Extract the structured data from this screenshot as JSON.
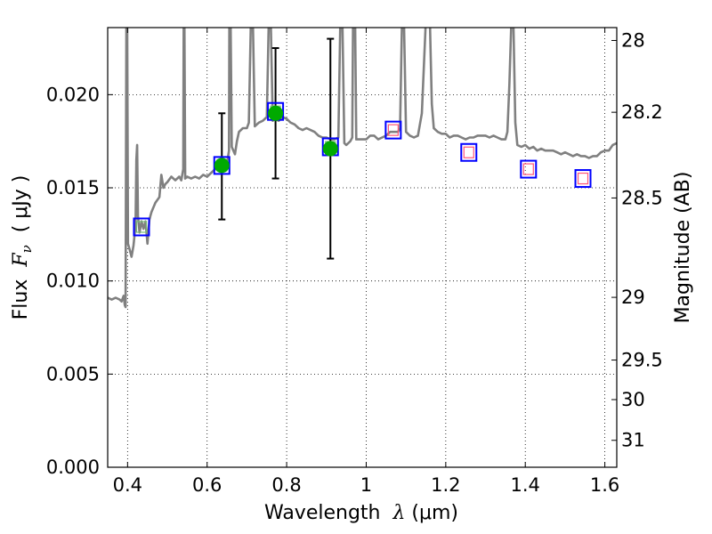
{
  "chart_data": {
    "type": "scatter",
    "xlabel": {
      "prefix": "Wavelength  ",
      "symbol": "λ",
      "unit": " (μm)"
    },
    "ylabel": {
      "prefix": "Flux  ",
      "symbol": "F",
      "sub": "ν",
      "unit": "  ( μJy )"
    },
    "y2label": "Magnitude (AB)",
    "xlim": [
      0.35,
      1.63
    ],
    "ylim": [
      0.0,
      0.0236
    ],
    "x_ticks": [
      0.4,
      0.6,
      0.8,
      1.0,
      1.2,
      1.4,
      1.6
    ],
    "x_tick_labels": [
      "0.4",
      "0.6",
      "0.8",
      "1",
      "1.2",
      "1.4",
      "1.6"
    ],
    "y_ticks": [
      0.0,
      0.005,
      0.01,
      0.015,
      0.02
    ],
    "y_tick_labels": [
      "0.000",
      "0.005",
      "0.010",
      "0.015",
      "0.020"
    ],
    "y2_ticks": [
      {
        "mag": 28.0,
        "label": "28"
      },
      {
        "mag": 28.2,
        "label": "28.2"
      },
      {
        "mag": 28.5,
        "label": "28.5"
      },
      {
        "mag": 29.0,
        "label": "29"
      },
      {
        "mag": 29.5,
        "label": "29.5"
      },
      {
        "mag": 30.0,
        "label": "30"
      },
      {
        "mag": 31.0,
        "label": "31"
      }
    ],
    "grid": true,
    "model_spectrum": {
      "color": "#808080",
      "points": [
        [
          0.35,
          0.0091
        ],
        [
          0.36,
          0.009
        ],
        [
          0.37,
          0.0091
        ],
        [
          0.38,
          0.009
        ],
        [
          0.385,
          0.0089
        ],
        [
          0.39,
          0.0092
        ],
        [
          0.393,
          0.0087
        ],
        [
          0.395,
          0.0086
        ],
        [
          0.397,
          0.024
        ],
        [
          0.399,
          0.024
        ],
        [
          0.401,
          0.012
        ],
        [
          0.405,
          0.0117
        ],
        [
          0.41,
          0.0113
        ],
        [
          0.415,
          0.0119
        ],
        [
          0.42,
          0.013
        ],
        [
          0.422,
          0.0165
        ],
        [
          0.424,
          0.0173
        ],
        [
          0.426,
          0.0135
        ],
        [
          0.43,
          0.0126
        ],
        [
          0.435,
          0.0132
        ],
        [
          0.44,
          0.0128
        ],
        [
          0.445,
          0.0132
        ],
        [
          0.45,
          0.012
        ],
        [
          0.455,
          0.0133
        ],
        [
          0.46,
          0.0137
        ],
        [
          0.47,
          0.0142
        ],
        [
          0.48,
          0.0145
        ],
        [
          0.485,
          0.0157
        ],
        [
          0.49,
          0.015
        ],
        [
          0.495,
          0.0152
        ],
        [
          0.5,
          0.0153
        ],
        [
          0.51,
          0.0156
        ],
        [
          0.52,
          0.0154
        ],
        [
          0.53,
          0.0156
        ],
        [
          0.535,
          0.0154
        ],
        [
          0.54,
          0.016
        ],
        [
          0.541,
          0.024
        ],
        [
          0.543,
          0.024
        ],
        [
          0.545,
          0.0155
        ],
        [
          0.55,
          0.0156
        ],
        [
          0.56,
          0.0155
        ],
        [
          0.57,
          0.0156
        ],
        [
          0.58,
          0.0155
        ],
        [
          0.59,
          0.0157
        ],
        [
          0.6,
          0.0156
        ],
        [
          0.61,
          0.0158
        ],
        [
          0.62,
          0.016
        ],
        [
          0.63,
          0.016
        ],
        [
          0.64,
          0.0162
        ],
        [
          0.65,
          0.0163
        ],
        [
          0.655,
          0.017
        ],
        [
          0.656,
          0.024
        ],
        [
          0.659,
          0.024
        ],
        [
          0.662,
          0.0172
        ],
        [
          0.67,
          0.0168
        ],
        [
          0.675,
          0.0175
        ],
        [
          0.68,
          0.018
        ],
        [
          0.69,
          0.0182
        ],
        [
          0.7,
          0.0182
        ],
        [
          0.705,
          0.0185
        ],
        [
          0.71,
          0.024
        ],
        [
          0.715,
          0.024
        ],
        [
          0.72,
          0.0183
        ],
        [
          0.73,
          0.0185
        ],
        [
          0.74,
          0.0186
        ],
        [
          0.75,
          0.0188
        ],
        [
          0.755,
          0.024
        ],
        [
          0.76,
          0.024
        ],
        [
          0.765,
          0.0186
        ],
        [
          0.77,
          0.0187
        ],
        [
          0.78,
          0.0186
        ],
        [
          0.79,
          0.0188
        ],
        [
          0.8,
          0.0187
        ],
        [
          0.81,
          0.0185
        ],
        [
          0.82,
          0.0184
        ],
        [
          0.83,
          0.0182
        ],
        [
          0.84,
          0.0181
        ],
        [
          0.85,
          0.0182
        ],
        [
          0.86,
          0.0181
        ],
        [
          0.87,
          0.018
        ],
        [
          0.88,
          0.0178
        ],
        [
          0.89,
          0.0177
        ],
        [
          0.9,
          0.0177
        ],
        [
          0.91,
          0.0176
        ],
        [
          0.92,
          0.0176
        ],
        [
          0.93,
          0.0177
        ],
        [
          0.935,
          0.024
        ],
        [
          0.94,
          0.024
        ],
        [
          0.945,
          0.0174
        ],
        [
          0.95,
          0.0173
        ],
        [
          0.96,
          0.0175
        ],
        [
          0.965,
          0.0177
        ],
        [
          0.967,
          0.024
        ],
        [
          0.972,
          0.024
        ],
        [
          0.975,
          0.0176
        ],
        [
          0.98,
          0.0176
        ],
        [
          0.99,
          0.0176
        ],
        [
          1.0,
          0.0176
        ],
        [
          1.01,
          0.0178
        ],
        [
          1.02,
          0.0178
        ],
        [
          1.03,
          0.0176
        ],
        [
          1.04,
          0.0177
        ],
        [
          1.05,
          0.0178
        ],
        [
          1.06,
          0.018
        ],
        [
          1.07,
          0.018
        ],
        [
          1.08,
          0.018
        ],
        [
          1.085,
          0.0182
        ],
        [
          1.09,
          0.024
        ],
        [
          1.095,
          0.024
        ],
        [
          1.1,
          0.018
        ],
        [
          1.11,
          0.0178
        ],
        [
          1.12,
          0.0177
        ],
        [
          1.13,
          0.0178
        ],
        [
          1.14,
          0.019
        ],
        [
          1.15,
          0.024
        ],
        [
          1.155,
          0.024
        ],
        [
          1.16,
          0.024
        ],
        [
          1.165,
          0.0195
        ],
        [
          1.17,
          0.0182
        ],
        [
          1.18,
          0.018
        ],
        [
          1.19,
          0.0179
        ],
        [
          1.2,
          0.0179
        ],
        [
          1.21,
          0.0177
        ],
        [
          1.22,
          0.0178
        ],
        [
          1.23,
          0.0178
        ],
        [
          1.24,
          0.0177
        ],
        [
          1.25,
          0.0176
        ],
        [
          1.26,
          0.0177
        ],
        [
          1.27,
          0.0177
        ],
        [
          1.28,
          0.0178
        ],
        [
          1.29,
          0.0178
        ],
        [
          1.3,
          0.0178
        ],
        [
          1.31,
          0.0177
        ],
        [
          1.32,
          0.0178
        ],
        [
          1.33,
          0.0177
        ],
        [
          1.34,
          0.0176
        ],
        [
          1.35,
          0.0176
        ],
        [
          1.355,
          0.018
        ],
        [
          1.36,
          0.0205
        ],
        [
          1.365,
          0.024
        ],
        [
          1.37,
          0.024
        ],
        [
          1.375,
          0.0185
        ],
        [
          1.38,
          0.0173
        ],
        [
          1.39,
          0.0172
        ],
        [
          1.4,
          0.0173
        ],
        [
          1.41,
          0.0171
        ],
        [
          1.42,
          0.0172
        ],
        [
          1.43,
          0.017
        ],
        [
          1.44,
          0.0171
        ],
        [
          1.45,
          0.017
        ],
        [
          1.46,
          0.017
        ],
        [
          1.47,
          0.017
        ],
        [
          1.48,
          0.0169
        ],
        [
          1.49,
          0.0168
        ],
        [
          1.5,
          0.0169
        ],
        [
          1.51,
          0.0168
        ],
        [
          1.52,
          0.0167
        ],
        [
          1.53,
          0.0168
        ],
        [
          1.54,
          0.0167
        ],
        [
          1.55,
          0.0167
        ],
        [
          1.56,
          0.0166
        ],
        [
          1.57,
          0.0167
        ],
        [
          1.58,
          0.0167
        ],
        [
          1.59,
          0.0169
        ],
        [
          1.6,
          0.017
        ],
        [
          1.61,
          0.017
        ],
        [
          1.62,
          0.0173
        ],
        [
          1.63,
          0.0174
        ]
      ]
    },
    "model_photometry": {
      "outline_color": "#0000ff",
      "points": [
        {
          "x": 0.435,
          "y": 0.0129,
          "inner": "#77bb77"
        },
        {
          "x": 0.637,
          "y": 0.0162,
          "inner": "#77bb77"
        },
        {
          "x": 0.772,
          "y": 0.0191,
          "inner": "#77bb77"
        },
        {
          "x": 0.91,
          "y": 0.0172,
          "inner": "#77bb77"
        },
        {
          "x": 1.068,
          "y": 0.0181,
          "inner": "#ff5577"
        },
        {
          "x": 1.258,
          "y": 0.0169,
          "inner": "#ff5577"
        },
        {
          "x": 1.408,
          "y": 0.016,
          "inner": "#ff5577"
        },
        {
          "x": 1.545,
          "y": 0.0155,
          "inner": "#ff5577"
        }
      ]
    },
    "observed": {
      "color": "#00aa00",
      "points": [
        {
          "x": 0.637,
          "y": 0.0162,
          "yerr_low": 0.0133,
          "yerr_high": 0.019
        },
        {
          "x": 0.772,
          "y": 0.019,
          "yerr_low": 0.0155,
          "yerr_high": 0.0225
        },
        {
          "x": 0.91,
          "y": 0.0171,
          "yerr_low": 0.0112,
          "yerr_high": 0.023
        }
      ]
    }
  }
}
